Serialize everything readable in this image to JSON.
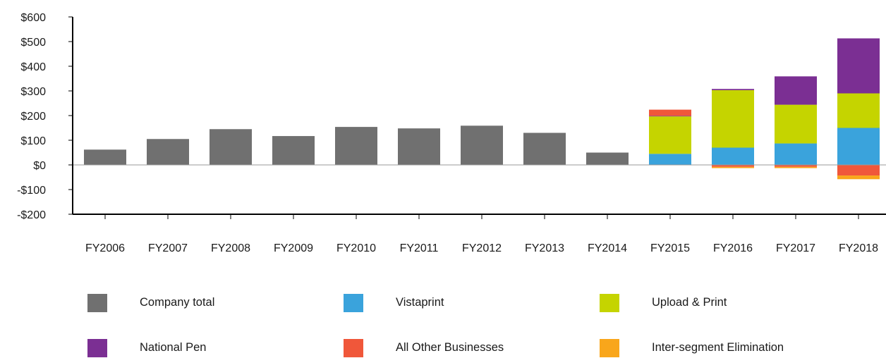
{
  "chart_data": {
    "type": "bar",
    "stacked": true,
    "title": "",
    "xlabel": "",
    "ylabel": "",
    "ylim": [
      -200,
      600
    ],
    "y_tick_values": [
      -200,
      -100,
      0,
      100,
      200,
      300,
      400,
      500,
      600
    ],
    "y_tick_labels": [
      "-$200",
      "-$100",
      "$0",
      "$100",
      "$200",
      "$300",
      "$400",
      "$500",
      "$600"
    ],
    "grid": false,
    "zero_line": true,
    "legend_position": "bottom",
    "categories": [
      "FY2006",
      "FY2007",
      "FY2008",
      "FY2009",
      "FY2010",
      "FY2011",
      "FY2012",
      "FY2013",
      "FY2014",
      "FY2015",
      "FY2016",
      "FY2017",
      "FY2018"
    ],
    "series": [
      {
        "name": "Company total",
        "color": "#707070",
        "values": [
          62,
          105,
          145,
          117,
          154,
          148,
          159,
          130,
          50,
          null,
          null,
          null,
          null
        ]
      },
      {
        "name": "Vistaprint",
        "color": "#3aa3dc",
        "values": [
          null,
          null,
          null,
          null,
          null,
          null,
          null,
          null,
          null,
          45,
          70,
          87,
          150
        ]
      },
      {
        "name": "Upload & Print",
        "color": "#c5d400",
        "values": [
          null,
          null,
          null,
          null,
          null,
          null,
          null,
          null,
          null,
          152,
          233,
          157,
          140
        ]
      },
      {
        "name": "National Pen",
        "color": "#7b2f93",
        "values": [
          null,
          null,
          null,
          null,
          null,
          null,
          null,
          null,
          null,
          2,
          5,
          115,
          223
        ]
      },
      {
        "name": "All Other Businesses",
        "color": "#f0573a",
        "values": [
          null,
          null,
          null,
          null,
          null,
          null,
          null,
          null,
          null,
          25,
          -8,
          -8,
          -43
        ]
      },
      {
        "name": "Inter-segment Elimination",
        "color": "#f9a61b",
        "values": [
          null,
          null,
          null,
          null,
          null,
          null,
          null,
          null,
          null,
          0,
          -5,
          -5,
          -15
        ]
      }
    ]
  }
}
